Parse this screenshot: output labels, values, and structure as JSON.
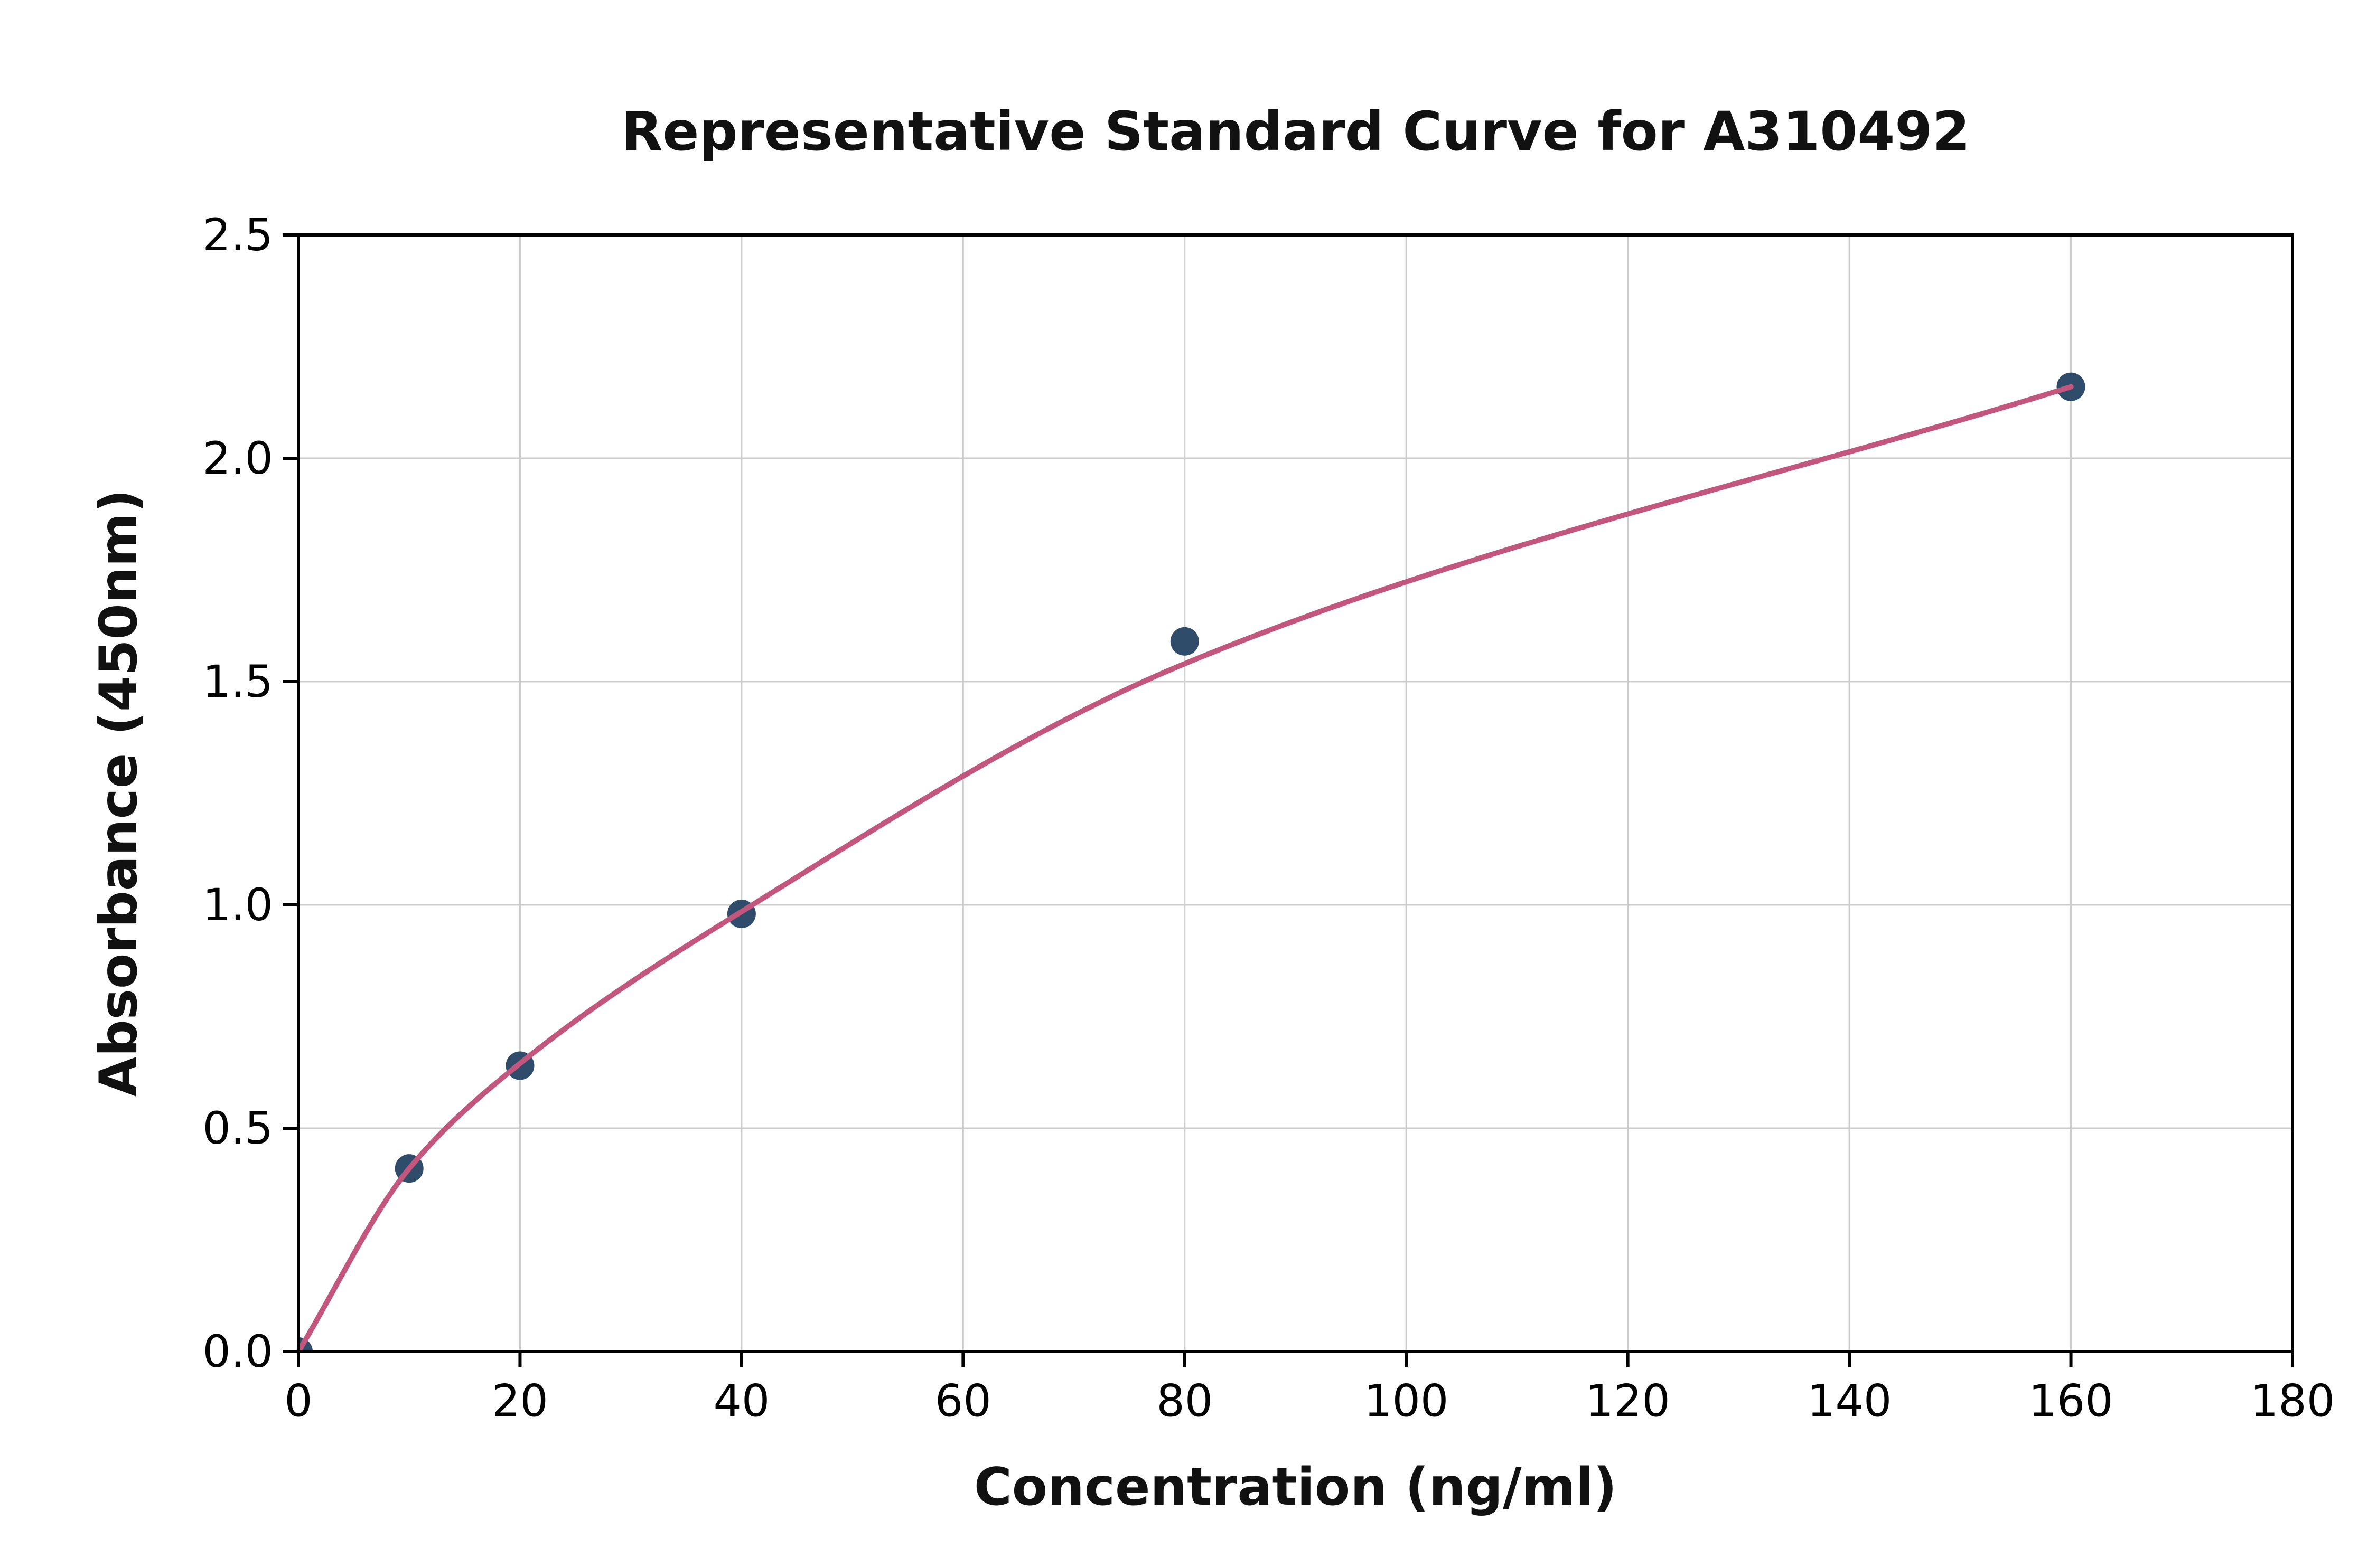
{
  "chart_data": {
    "type": "scatter",
    "title": "Representative Standard Curve for A310492",
    "xlabel": "Concentration (ng/ml)",
    "ylabel": "Absorbance (450nm)",
    "xlim": [
      0,
      180
    ],
    "ylim": [
      0.0,
      2.5
    ],
    "grid": true,
    "legend": "none",
    "x_ticks": [
      0,
      20,
      40,
      60,
      80,
      100,
      120,
      140,
      160,
      180
    ],
    "x_tick_labels": [
      "0",
      "20",
      "40",
      "60",
      "80",
      "100",
      "120",
      "140",
      "160",
      "180"
    ],
    "y_ticks": [
      0.0,
      0.5,
      1.0,
      1.5,
      2.0,
      2.5
    ],
    "y_tick_labels": [
      "0.0",
      "0.5",
      "1.0",
      "1.5",
      "2.0",
      "2.5"
    ],
    "series": [
      {
        "name": "standard-points",
        "type": "scatter",
        "x": [
          0,
          10,
          20,
          40,
          80,
          160
        ],
        "y": [
          0.0,
          0.41,
          0.64,
          0.98,
          1.59,
          2.16
        ],
        "color": "#2f4d6a"
      },
      {
        "name": "fit-curve",
        "type": "line",
        "x": [
          0,
          10,
          20,
          40,
          80,
          160
        ],
        "y": [
          0.0,
          0.41,
          0.645,
          0.985,
          1.54,
          2.16
        ],
        "color": "#c2567c"
      }
    ],
    "colors": {
      "grid": "#cccccc",
      "axis": "#000000",
      "tick_text": "#000000",
      "background": "#ffffff"
    }
  }
}
